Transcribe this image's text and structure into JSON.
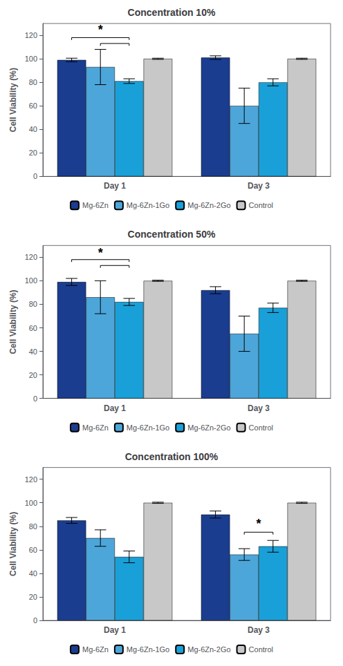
{
  "chart_data": [
    {
      "type": "bar",
      "title": "Concentration 10%",
      "categories": [
        "Day 1",
        "Day 3"
      ],
      "series": [
        {
          "name": "Mg-6Zn",
          "color": "#1a3d8f",
          "values": [
            99,
            101
          ],
          "errors": [
            1.5,
            1.5
          ]
        },
        {
          "name": "Mg-6Zn-1Go",
          "color": "#4da6d9",
          "values": [
            93,
            60
          ],
          "errors": [
            15,
            15
          ]
        },
        {
          "name": "Mg-6Zn-2Go",
          "color": "#1aa0d8",
          "values": [
            81,
            80
          ],
          "errors": [
            2,
            3
          ]
        },
        {
          "name": "Control",
          "color": "#c8c8c8",
          "values": [
            100,
            100
          ],
          "errors": [
            0.5,
            0.5
          ]
        }
      ],
      "brackets": [
        {
          "category": "Day 1",
          "from": "Mg-6Zn",
          "to": "Mg-6Zn-2Go",
          "level": 118
        },
        {
          "category": "Day 1",
          "from": "Mg-6Zn-1Go",
          "to": "Mg-6Zn-2Go",
          "level": 113
        }
      ],
      "annotations": [
        {
          "text": "*",
          "category": "Day 1",
          "series": [
            "Mg-6Zn-1Go"
          ],
          "y": 122
        }
      ],
      "ylabel": "Cell Viability (%)",
      "ylim": [
        0,
        130
      ],
      "yticks": [
        0,
        20,
        40,
        60,
        80,
        100,
        120
      ],
      "grid": false,
      "legend": "bottom"
    },
    {
      "type": "bar",
      "title": "Concentration 50%",
      "categories": [
        "Day 1",
        "Day 3"
      ],
      "series": [
        {
          "name": "Mg-6Zn",
          "color": "#1a3d8f",
          "values": [
            99,
            92
          ],
          "errors": [
            3,
            3
          ]
        },
        {
          "name": "Mg-6Zn-1Go",
          "color": "#4da6d9",
          "values": [
            86,
            55
          ],
          "errors": [
            14,
            15
          ]
        },
        {
          "name": "Mg-6Zn-2Go",
          "color": "#1aa0d8",
          "values": [
            82,
            77
          ],
          "errors": [
            3,
            4
          ]
        },
        {
          "name": "Control",
          "color": "#c8c8c8",
          "values": [
            100,
            100
          ],
          "errors": [
            0.5,
            0.5
          ]
        }
      ],
      "brackets": [
        {
          "category": "Day 1",
          "from": "Mg-6Zn",
          "to": "Mg-6Zn-2Go",
          "level": 118
        },
        {
          "category": "Day 1",
          "from": "Mg-6Zn-1Go",
          "to": "Mg-6Zn-2Go",
          "level": 113
        }
      ],
      "annotations": [
        {
          "text": "*",
          "category": "Day 1",
          "series": [
            "Mg-6Zn-1Go"
          ],
          "y": 121
        }
      ],
      "ylabel": "Cell Viability (%)",
      "ylim": [
        0,
        130
      ],
      "yticks": [
        0,
        20,
        40,
        60,
        80,
        100,
        120
      ],
      "grid": false,
      "legend": "bottom"
    },
    {
      "type": "bar",
      "title": "Concentration 100%",
      "categories": [
        "Day 1",
        "Day 3"
      ],
      "series": [
        {
          "name": "Mg-6Zn",
          "color": "#1a3d8f",
          "values": [
            85,
            90
          ],
          "errors": [
            2.5,
            3
          ]
        },
        {
          "name": "Mg-6Zn-1Go",
          "color": "#4da6d9",
          "values": [
            70,
            56
          ],
          "errors": [
            7,
            5
          ]
        },
        {
          "name": "Mg-6Zn-2Go",
          "color": "#1aa0d8",
          "values": [
            54,
            63
          ],
          "errors": [
            5,
            5
          ]
        },
        {
          "name": "Control",
          "color": "#c8c8c8",
          "values": [
            100,
            100
          ],
          "errors": [
            0.5,
            0.5
          ]
        }
      ],
      "brackets": [
        {
          "category": "Day 3",
          "from": "Mg-6Zn-1Go",
          "to": "Mg-6Zn-2Go",
          "level": 75
        }
      ],
      "annotations": [
        {
          "text": "*",
          "category": "Day 3",
          "series": [
            "Mg-6Zn-1Go",
            "Mg-6Zn-2Go"
          ],
          "y": 79
        }
      ],
      "ylabel": "Cell Viability (%)",
      "ylim": [
        0,
        130
      ],
      "yticks": [
        0,
        20,
        40,
        60,
        80,
        100,
        120
      ],
      "grid": false,
      "legend": "bottom"
    }
  ]
}
